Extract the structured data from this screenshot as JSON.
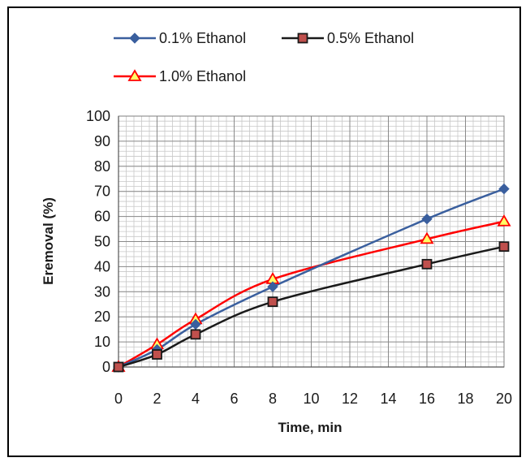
{
  "chart_data": {
    "type": "line",
    "title": "",
    "xlabel": "Time, min",
    "ylabel": "Eremoval (%)",
    "xlim": [
      0,
      20
    ],
    "ylim": [
      0,
      100
    ],
    "x_ticks": [
      0,
      2,
      4,
      6,
      8,
      10,
      12,
      14,
      16,
      18,
      20
    ],
    "y_ticks": [
      0,
      10,
      20,
      30,
      40,
      50,
      60,
      70,
      80,
      90,
      100
    ],
    "grid": true,
    "legend_position": "top",
    "series": [
      {
        "name": "0.1% Ethanol",
        "color": "#3a5f9e",
        "marker": "diamond",
        "x": [
          0,
          2,
          4,
          8,
          16,
          20
        ],
        "y": [
          0,
          7,
          17,
          32,
          59,
          71
        ]
      },
      {
        "name": "0.5% Ethanol",
        "color": "#1a1a1a",
        "marker": "square",
        "marker_fill": "#c0504d",
        "x": [
          0,
          2,
          4,
          8,
          16,
          20
        ],
        "y": [
          0,
          5,
          13,
          26,
          41,
          48
        ]
      },
      {
        "name": "1.0% Ethanol",
        "color": "#ff0000",
        "marker": "triangle",
        "marker_fill": "#ffff66",
        "x": [
          0,
          2,
          4,
          8,
          16,
          20
        ],
        "y": [
          0,
          9,
          19,
          35,
          51,
          58
        ]
      }
    ]
  }
}
